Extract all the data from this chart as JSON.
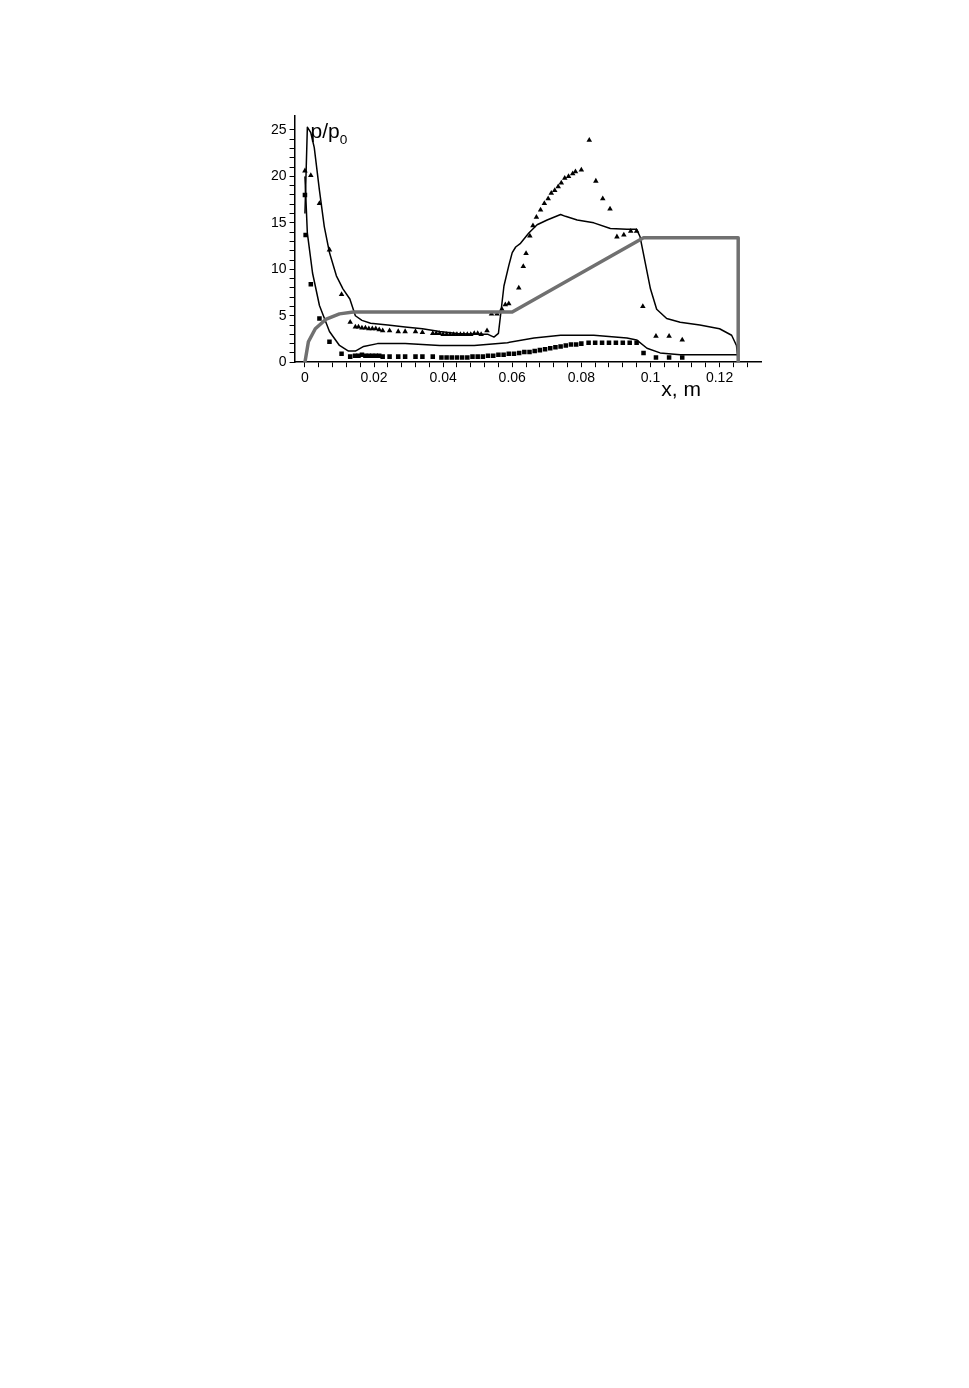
{
  "chart_data": {
    "type": "line",
    "xlabel": "x, m",
    "ylabel": "p/p$_{0}$",
    "xlim": [
      -0.003,
      0.132
    ],
    "ylim": [
      0,
      26.5
    ],
    "xticks": [
      0,
      {
        "value": 0.004,
        "label": null
      },
      {
        "value": 0.008,
        "label": null
      },
      {
        "value": 0.012,
        "label": null
      },
      {
        "value": 0.016,
        "label": null
      },
      0.02,
      {
        "value": 0.024,
        "label": null
      },
      {
        "value": 0.028,
        "label": null
      },
      {
        "value": 0.032,
        "label": null
      },
      {
        "value": 0.036,
        "label": null
      },
      0.04,
      {
        "value": 0.044,
        "label": null
      },
      {
        "value": 0.048,
        "label": null
      },
      {
        "value": 0.052,
        "label": null
      },
      {
        "value": 0.056,
        "label": null
      },
      0.06,
      {
        "value": 0.064,
        "label": null
      },
      {
        "value": 0.068,
        "label": null
      },
      {
        "value": 0.072,
        "label": null
      },
      {
        "value": 0.076,
        "label": null
      },
      0.08,
      {
        "value": 0.084,
        "label": null
      },
      {
        "value": 0.088,
        "label": null
      },
      {
        "value": 0.092,
        "label": null
      },
      {
        "value": 0.096,
        "label": null
      },
      0.1,
      {
        "value": 0.104,
        "label": null
      },
      {
        "value": 0.108,
        "label": null
      },
      {
        "value": 0.112,
        "label": null
      },
      {
        "value": 0.116,
        "label": null
      },
      0.12,
      {
        "value": 0.124,
        "label": null
      },
      {
        "value": 0.128,
        "label": null
      }
    ],
    "yticks": [
      0,
      {
        "value": 1,
        "label": null
      },
      {
        "value": 2,
        "label": null
      },
      {
        "value": 3,
        "label": null
      },
      {
        "value": 4,
        "label": null
      },
      5,
      {
        "value": 6,
        "label": null
      },
      {
        "value": 7,
        "label": null
      },
      {
        "value": 8,
        "label": null
      },
      {
        "value": 9,
        "label": null
      },
      10,
      {
        "value": 11,
        "label": null
      },
      {
        "value": 12,
        "label": null
      },
      {
        "value": 13,
        "label": null
      },
      {
        "value": 14,
        "label": null
      },
      15,
      {
        "value": 16,
        "label": null
      },
      {
        "value": 17,
        "label": null
      },
      {
        "value": 18,
        "label": null
      },
      {
        "value": 19,
        "label": null
      },
      20,
      {
        "value": 21,
        "label": null
      },
      {
        "value": 22,
        "label": null
      },
      {
        "value": 23,
        "label": null
      },
      {
        "value": 24,
        "label": null
      },
      25
    ],
    "grid": false,
    "legend": false,
    "series": [
      {
        "type": "line",
        "marker": "none",
        "color": "#707070",
        "x": [
          0,
          0.001,
          0.003,
          0.006,
          0.01,
          0.014,
          0.06,
          0.098,
          0.1254,
          0.1254
        ],
        "values": [
          0,
          2.2,
          3.6,
          4.6,
          5.2,
          5.4,
          5.4,
          13.4,
          13.4,
          0
        ]
      },
      {
        "type": "line",
        "marker": "none",
        "color": "#000000",
        "x": [
          0,
          0.0007,
          0.0017,
          0.0027,
          0.0042,
          0.0056,
          0.0071,
          0.0091,
          0.011,
          0.013,
          0.0146,
          0.0165,
          0.019,
          0.024,
          0.029,
          0.034,
          0.039,
          0.044,
          0.049,
          0.053,
          0.0547,
          0.056,
          0.0566,
          0.0576,
          0.059,
          0.06,
          0.061,
          0.0624,
          0.0648,
          0.0672,
          0.0701,
          0.074,
          0.0754,
          0.0788,
          0.0836,
          0.0884,
          0.0932,
          0.096,
          0.097,
          0.0985,
          0.1,
          0.1018,
          0.1047,
          0.1086,
          0.1143,
          0.12,
          0.1235,
          0.1249,
          0.1254
        ],
        "values": [
          16,
          25.3,
          24.7,
          23.1,
          18.5,
          14.6,
          11.8,
          9.3,
          7.9,
          6.8,
          5.0,
          4.5,
          4.2,
          4.0,
          3.8,
          3.6,
          3.3,
          3.1,
          3.0,
          3.0,
          2.7,
          3.1,
          5.0,
          8.2,
          10.4,
          11.8,
          12.4,
          12.8,
          13.9,
          14.8,
          15.3,
          15.9,
          15.7,
          15.3,
          15.0,
          14.4,
          14.3,
          14.3,
          13.5,
          10.7,
          7.9,
          5.7,
          4.7,
          4.3,
          4.0,
          3.6,
          2.9,
          1.8,
          0.1
        ]
      },
      {
        "type": "line",
        "marker": "none",
        "color": "#000000",
        "x": [
          0,
          0.0007,
          0.0022,
          0.0042,
          0.0071,
          0.01,
          0.0126,
          0.0146,
          0.017,
          0.021,
          0.029,
          0.039,
          0.049,
          0.0586,
          0.0663,
          0.074,
          0.0836,
          0.0932,
          0.096,
          0.099,
          0.1028,
          0.1086,
          0.122,
          0.1254
        ],
        "values": [
          20,
          13.9,
          9.6,
          6.1,
          3.3,
          1.8,
          1.2,
          1.2,
          1.7,
          2.0,
          2.0,
          1.8,
          1.8,
          2.1,
          2.6,
          2.9,
          2.9,
          2.6,
          2.4,
          1.5,
          1.0,
          0.8,
          0.8,
          0.8
        ]
      },
      {
        "type": "scatter",
        "marker": "triangle",
        "color": "#000000",
        "x": [
          0,
          0.0017,
          0.0042,
          0.0071,
          0.0106,
          0.0131,
          0.0146,
          0.0155,
          0.0165,
          0.0175,
          0.0185,
          0.0195,
          0.0205,
          0.0215,
          0.0225,
          0.0245,
          0.027,
          0.029,
          0.032,
          0.034,
          0.037,
          0.038,
          0.039,
          0.04,
          0.041,
          0.042,
          0.043,
          0.044,
          0.045,
          0.046,
          0.047,
          0.048,
          0.049,
          0.05,
          0.051,
          0.0527,
          0.054,
          0.0556,
          0.057,
          0.058,
          0.059,
          0.0619,
          0.0632,
          0.064,
          0.0651,
          0.066,
          0.067,
          0.0682,
          0.0693,
          0.0704,
          0.0713,
          0.0723,
          0.0733,
          0.0742,
          0.0752,
          0.0763,
          0.0775,
          0.0783,
          0.08,
          0.0823,
          0.0842,
          0.0862,
          0.0883,
          0.0903,
          0.0923,
          0.0943,
          0.096,
          0.0978,
          0.1016,
          0.1054,
          0.1092
        ],
        "values": [
          20.6,
          20.1,
          17.1,
          12.1,
          7.3,
          4.3,
          3.8,
          3.8,
          3.7,
          3.7,
          3.6,
          3.6,
          3.6,
          3.5,
          3.4,
          3.4,
          3.3,
          3.3,
          3.3,
          3.2,
          3.1,
          3.1,
          3.1,
          3.0,
          3.0,
          3.0,
          3.0,
          3.0,
          3.0,
          3.0,
          3.0,
          3.0,
          3.1,
          3.1,
          3.0,
          3.4,
          5.2,
          5.2,
          5.7,
          6.2,
          6.3,
          8.0,
          10.3,
          11.7,
          13.6,
          14.7,
          15.6,
          16.4,
          17.1,
          17.6,
          18.2,
          18.5,
          18.9,
          19.3,
          19.8,
          20.0,
          20.3,
          20.5,
          20.7,
          23.9,
          19.5,
          17.6,
          16.5,
          13.5,
          13.7,
          14.1,
          14.1,
          6.0,
          2.8,
          2.8,
          2.4
        ]
      },
      {
        "type": "scatter",
        "marker": "square",
        "color": "#000000",
        "x": [
          0,
          0.0002,
          0.0017,
          0.0042,
          0.0071,
          0.0106,
          0.0131,
          0.0145,
          0.0155,
          0.0165,
          0.0175,
          0.0185,
          0.0195,
          0.0205,
          0.0215,
          0.0225,
          0.0245,
          0.027,
          0.029,
          0.032,
          0.034,
          0.037,
          0.0395,
          0.041,
          0.0425,
          0.044,
          0.0455,
          0.047,
          0.0485,
          0.05,
          0.0515,
          0.053,
          0.0545,
          0.056,
          0.0575,
          0.059,
          0.0605,
          0.062,
          0.0635,
          0.065,
          0.0665,
          0.068,
          0.0695,
          0.071,
          0.0725,
          0.074,
          0.0755,
          0.077,
          0.0785,
          0.08,
          0.0821,
          0.084,
          0.086,
          0.088,
          0.09,
          0.092,
          0.094,
          0.096,
          0.098,
          0.1016,
          0.1054,
          0.1092
        ],
        "values": [
          18.0,
          13.7,
          8.4,
          4.7,
          2.2,
          0.9,
          0.6,
          0.7,
          0.7,
          0.8,
          0.7,
          0.7,
          0.7,
          0.7,
          0.7,
          0.6,
          0.6,
          0.6,
          0.6,
          0.6,
          0.6,
          0.6,
          0.5,
          0.5,
          0.5,
          0.5,
          0.5,
          0.5,
          0.6,
          0.6,
          0.6,
          0.7,
          0.7,
          0.8,
          0.8,
          0.9,
          0.9,
          1.0,
          1.1,
          1.1,
          1.2,
          1.3,
          1.4,
          1.5,
          1.6,
          1.7,
          1.8,
          1.9,
          1.9,
          2.0,
          2.1,
          2.1,
          2.1,
          2.1,
          2.1,
          2.1,
          2.1,
          2.1,
          1.0,
          0.5,
          0.5,
          0.5
        ]
      }
    ]
  }
}
